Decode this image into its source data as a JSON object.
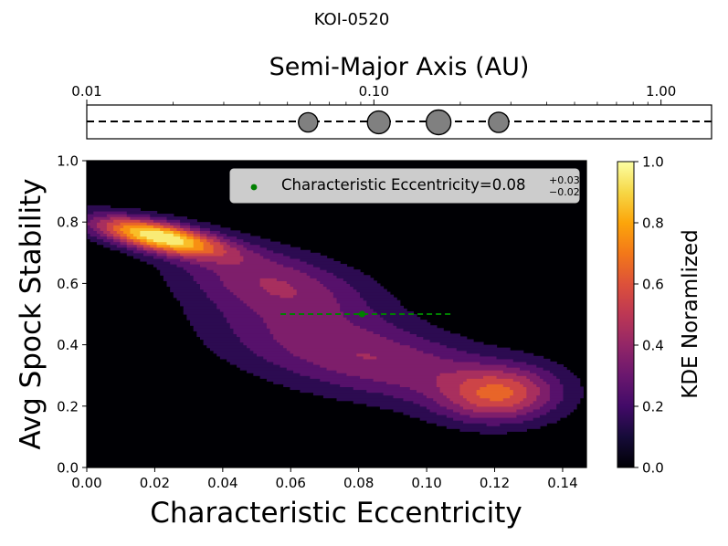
{
  "figure": {
    "title": "KOI-0520"
  },
  "chart_data": [
    {
      "type": "scatter",
      "name": "planet-orbit-strip",
      "title": "Semi-Major Axis (AU)",
      "xscale": "log",
      "xlim": [
        0.01,
        1.5
      ],
      "ticks": [
        {
          "value": 0.01,
          "label": "0.01"
        },
        {
          "value": 0.1,
          "label": "0.10"
        },
        {
          "value": 1.0,
          "label": "1.00"
        }
      ],
      "reference_line": "dashed horizontal",
      "planets": [
        {
          "a": 0.059,
          "relative_size": 0.78
        },
        {
          "a": 0.104,
          "relative_size": 0.92
        },
        {
          "a": 0.168,
          "relative_size": 1.0
        },
        {
          "a": 0.272,
          "relative_size": 0.82
        }
      ],
      "planet_color": "#808080"
    },
    {
      "type": "heatmap",
      "name": "kde-contour",
      "xlabel": "Characteristic Eccentricity",
      "ylabel": "Avg Spock Stability",
      "xlim": [
        0.0,
        0.147
      ],
      "ylim": [
        0.0,
        1.0
      ],
      "xticks": [
        {
          "value": 0.0,
          "label": "0.00"
        },
        {
          "value": 0.02,
          "label": "0.02"
        },
        {
          "value": 0.04,
          "label": "0.04"
        },
        {
          "value": 0.06,
          "label": "0.06"
        },
        {
          "value": 0.08,
          "label": "0.08"
        },
        {
          "value": 0.1,
          "label": "0.10"
        },
        {
          "value": 0.12,
          "label": "0.12"
        },
        {
          "value": 0.14,
          "label": "0.14"
        }
      ],
      "yticks": [
        {
          "value": 0.0,
          "label": "0.0"
        },
        {
          "value": 0.2,
          "label": "0.2"
        },
        {
          "value": 0.4,
          "label": "0.4"
        },
        {
          "value": 0.6,
          "label": "0.6"
        },
        {
          "value": 0.8,
          "label": "0.8"
        },
        {
          "value": 1.0,
          "label": "1.0"
        }
      ],
      "colormap": "inferno",
      "contour_levels": [
        0.1,
        0.2,
        0.3,
        0.4,
        0.5,
        0.6,
        0.7,
        0.8,
        0.9
      ],
      "kde_components": [
        {
          "x": 0.021,
          "y": 0.755,
          "sx": 0.0135,
          "sy": 0.045,
          "rho": -0.62,
          "w": 1.0
        },
        {
          "x": 0.055,
          "y": 0.61,
          "sx": 0.02,
          "sy": 0.085,
          "rho": -0.45,
          "w": 0.36
        },
        {
          "x": 0.122,
          "y": 0.24,
          "sx": 0.012,
          "sy": 0.065,
          "rho": 0.1,
          "w": 0.5
        },
        {
          "x": 0.095,
          "y": 0.33,
          "sx": 0.024,
          "sy": 0.1,
          "rho": -0.5,
          "w": 0.33
        },
        {
          "x": 0.06,
          "y": 0.42,
          "sx": 0.022,
          "sy": 0.12,
          "rho": -0.4,
          "w": 0.22
        }
      ],
      "marker": {
        "x": 0.081,
        "y": 0.5,
        "xerr_low": 0.024,
        "xerr_high": 0.027,
        "color": "#008000"
      },
      "legend": {
        "placement": "top-right",
        "label": "Characteristic Eccentricity=0.08",
        "sup": "+0.03",
        "sub": "−0.02"
      },
      "colorbar": {
        "label": "KDE Noramlized",
        "range": [
          0.0,
          1.0
        ],
        "ticks": [
          {
            "value": 0.0,
            "label": "0.0"
          },
          {
            "value": 0.2,
            "label": "0.2"
          },
          {
            "value": 0.4,
            "label": "0.4"
          },
          {
            "value": 0.6,
            "label": "0.6"
          },
          {
            "value": 0.8,
            "label": "0.8"
          },
          {
            "value": 1.0,
            "label": "1.0"
          }
        ]
      }
    }
  ]
}
